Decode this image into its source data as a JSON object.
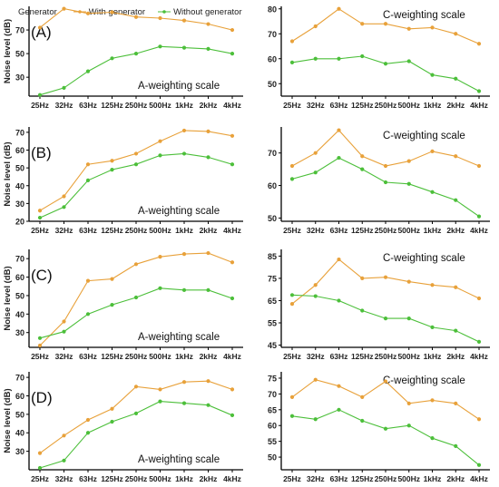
{
  "legend": {
    "title": "Generator",
    "items": [
      {
        "label": "With generator",
        "color": "#e8a13a"
      },
      {
        "label": "Without generator",
        "color": "#4cbf3a"
      }
    ]
  },
  "colors": {
    "with": "#e8a13a",
    "without": "#4cbf3a",
    "axis": "#000000"
  },
  "chart_data": [
    {
      "type": "line",
      "panel_label": "(A)",
      "scale_label": "A-weighting scale",
      "ylabel": "Noise level (dB)",
      "categories": [
        "25Hz",
        "32Hz",
        "63Hz",
        "125Hz",
        "250Hz",
        "500Hz",
        "1kHz",
        "2kHz",
        "4kHz"
      ],
      "ylim": [
        14,
        90
      ],
      "yticks": [
        30,
        50,
        70
      ],
      "series": [
        {
          "name": "With generator",
          "values": [
            72,
            88,
            84,
            85,
            81,
            80,
            78,
            75,
            70
          ]
        },
        {
          "name": "Without generator",
          "values": [
            15,
            21,
            35,
            46,
            50,
            56,
            55,
            54,
            50
          ]
        }
      ]
    },
    {
      "type": "line",
      "panel_label": "",
      "scale_label": "C-weighting scale",
      "ylabel": "",
      "categories": [
        "25Hz",
        "32Hz",
        "63Hz",
        "125Hz",
        "250Hz",
        "500Hz",
        "1kHz",
        "2kHz",
        "4kHz"
      ],
      "ylim": [
        45,
        81
      ],
      "yticks": [
        50,
        60,
        70,
        80
      ],
      "series": [
        {
          "name": "With generator",
          "values": [
            67,
            73,
            80,
            74,
            74,
            72,
            72.5,
            70,
            66
          ]
        },
        {
          "name": "Without generator",
          "values": [
            58.5,
            60,
            60,
            61,
            58,
            59,
            53.5,
            52,
            47
          ]
        }
      ]
    },
    {
      "type": "line",
      "panel_label": "(B)",
      "scale_label": "A-weighting scale",
      "ylabel": "Noise level (dB)",
      "categories": [
        "25Hz",
        "32Hz",
        "63Hz",
        "125Hz",
        "250Hz",
        "500Hz",
        "1kHz",
        "2kHz",
        "4kHz"
      ],
      "ylim": [
        20,
        73
      ],
      "yticks": [
        20,
        30,
        40,
        50,
        60,
        70
      ],
      "series": [
        {
          "name": "With generator",
          "values": [
            26,
            34,
            52,
            54,
            58,
            65,
            71,
            70.5,
            68
          ]
        },
        {
          "name": "Without generator",
          "values": [
            22,
            28,
            43,
            49,
            52,
            57,
            58,
            56,
            52
          ]
        }
      ]
    },
    {
      "type": "line",
      "panel_label": "",
      "scale_label": "C-weighting scale",
      "ylabel": "",
      "categories": [
        "25Hz",
        "32Hz",
        "63Hz",
        "125Hz",
        "250Hz",
        "500Hz",
        "1kHz",
        "2kHz",
        "4kHz"
      ],
      "ylim": [
        49,
        78
      ],
      "yticks": [
        50,
        60,
        70
      ],
      "series": [
        {
          "name": "With generator",
          "values": [
            66,
            70,
            77,
            69,
            66,
            67.5,
            70.5,
            69,
            66
          ]
        },
        {
          "name": "Without generator",
          "values": [
            62,
            64,
            68.5,
            65,
            61,
            60.5,
            58,
            55.5,
            50.5
          ]
        }
      ]
    },
    {
      "type": "line",
      "panel_label": "(C)",
      "scale_label": "A-weighting scale",
      "ylabel": "Noise level (dB)",
      "categories": [
        "25Hz",
        "32Hz",
        "63Hz",
        "125Hz",
        "250Hz",
        "500Hz",
        "1kHz",
        "2kHz",
        "4kHz"
      ],
      "ylim": [
        22,
        75
      ],
      "yticks": [
        30,
        40,
        50,
        60,
        70
      ],
      "series": [
        {
          "name": "With generator",
          "values": [
            23,
            36,
            58,
            59,
            67,
            71,
            72.5,
            73,
            68
          ]
        },
        {
          "name": "Without generator",
          "values": [
            27,
            30.5,
            40,
            45,
            49,
            54,
            53,
            53,
            48.5
          ]
        }
      ]
    },
    {
      "type": "line",
      "panel_label": "",
      "scale_label": "C-weighting scale",
      "ylabel": "",
      "categories": [
        "25Hz",
        "32Hz",
        "63Hz",
        "125Hz",
        "250Hz",
        "500Hz",
        "1kHz",
        "2kHz",
        "4kHz"
      ],
      "ylim": [
        44,
        88
      ],
      "yticks": [
        45,
        55,
        65,
        75,
        85
      ],
      "series": [
        {
          "name": "With generator",
          "values": [
            63.5,
            72,
            83.5,
            75,
            75.5,
            73.5,
            72,
            71,
            66
          ]
        },
        {
          "name": "Without generator",
          "values": [
            67.5,
            67,
            65,
            60.5,
            57,
            57,
            53,
            51.5,
            46.5
          ]
        }
      ]
    },
    {
      "type": "line",
      "panel_label": "(D)",
      "scale_label": "A-weighting scale",
      "ylabel": "Noise level (dB)",
      "categories": [
        "25Hz",
        "32Hz",
        "63Hz",
        "125Hz",
        "250Hz",
        "500Hz",
        "1kHz",
        "2kHz",
        "4kHz"
      ],
      "ylim": [
        20,
        73
      ],
      "yticks": [
        30,
        40,
        50,
        60,
        70
      ],
      "series": [
        {
          "name": "With generator",
          "values": [
            29,
            38.5,
            47,
            53,
            65,
            63.5,
            67.5,
            68,
            63.5
          ]
        },
        {
          "name": "Without generator",
          "values": [
            21,
            25,
            40,
            46,
            50.5,
            57,
            56,
            55,
            49.5
          ]
        }
      ]
    },
    {
      "type": "line",
      "panel_label": "",
      "scale_label": "C-weighting scale",
      "ylabel": "",
      "categories": [
        "25Hz",
        "32Hz",
        "63Hz",
        "125Hz",
        "250Hz",
        "500Hz",
        "1kHz",
        "2kHz",
        "4kHz"
      ],
      "ylim": [
        46,
        77
      ],
      "yticks": [
        50,
        55,
        60,
        65,
        70,
        75
      ],
      "series": [
        {
          "name": "With generator",
          "values": [
            69,
            74.5,
            72.5,
            69,
            74,
            67,
            68,
            67,
            62
          ]
        },
        {
          "name": "Without generator",
          "values": [
            63,
            62,
            65,
            61.5,
            59,
            60,
            56,
            53.5,
            47.5
          ]
        }
      ]
    }
  ]
}
